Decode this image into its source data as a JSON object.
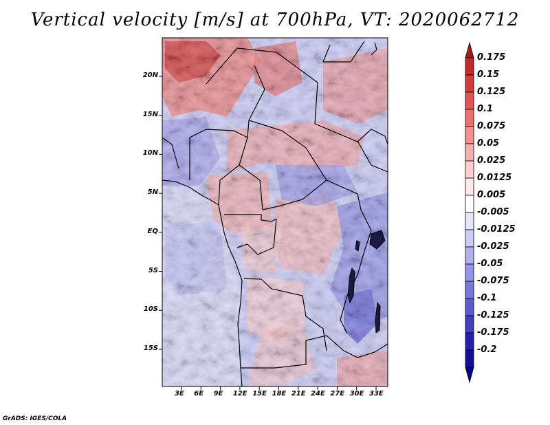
{
  "title": "Vertical velocity [m/s] at 700hPa, VT: 2020062712",
  "footer": "GrADS: IGES/COLA",
  "map": {
    "lat_labels": [
      "20N",
      "15N",
      "10N",
      "5N",
      "EQ",
      "5S",
      "10S",
      "15S"
    ],
    "lon_labels": [
      "3E",
      "6E",
      "9E",
      "12E",
      "15E",
      "18E",
      "21E",
      "24E",
      "27E",
      "30E",
      "33E"
    ]
  },
  "colorbar": {
    "labels": [
      "0.175",
      "0.15",
      "0.125",
      "0.1",
      "0.075",
      "0.05",
      "0.025",
      "0.0125",
      "0.005",
      "-0.005",
      "-0.0125",
      "-0.025",
      "-0.05",
      "-0.075",
      "-0.1",
      "-0.125",
      "-0.175",
      "-0.2"
    ],
    "colors": [
      "#ab1a1a",
      "#c42a2a",
      "#d63a3a",
      "#e45454",
      "#ec7070",
      "#f29090",
      "#f7b0b0",
      "#fbd0d0",
      "#fdeaea",
      "#ffffff",
      "#e6e6fa",
      "#ccccf5",
      "#b0b0f0",
      "#9494e8",
      "#7878dc",
      "#5c5cd0",
      "#4040c4",
      "#2020b0",
      "#1010a0",
      "#000088"
    ]
  },
  "chart_data": {
    "type": "heatmap",
    "title": "Vertical velocity [m/s] at 700hPa, VT: 2020062712",
    "variable": "Vertical velocity",
    "units": "m/s",
    "level": "700hPa",
    "valid_time": "2020062712",
    "x_ticks": [
      "3E",
      "6E",
      "9E",
      "12E",
      "15E",
      "18E",
      "21E",
      "24E",
      "27E",
      "30E",
      "33E"
    ],
    "y_ticks": [
      "20N",
      "15N",
      "10N",
      "5N",
      "EQ",
      "5S",
      "10S",
      "15S"
    ],
    "color_levels": [
      -0.2,
      -0.175,
      -0.125,
      -0.1,
      -0.075,
      -0.05,
      -0.025,
      -0.0125,
      -0.005,
      0.005,
      0.0125,
      0.025,
      0.05,
      0.075,
      0.1,
      0.125,
      0.15,
      0.175
    ]
  }
}
